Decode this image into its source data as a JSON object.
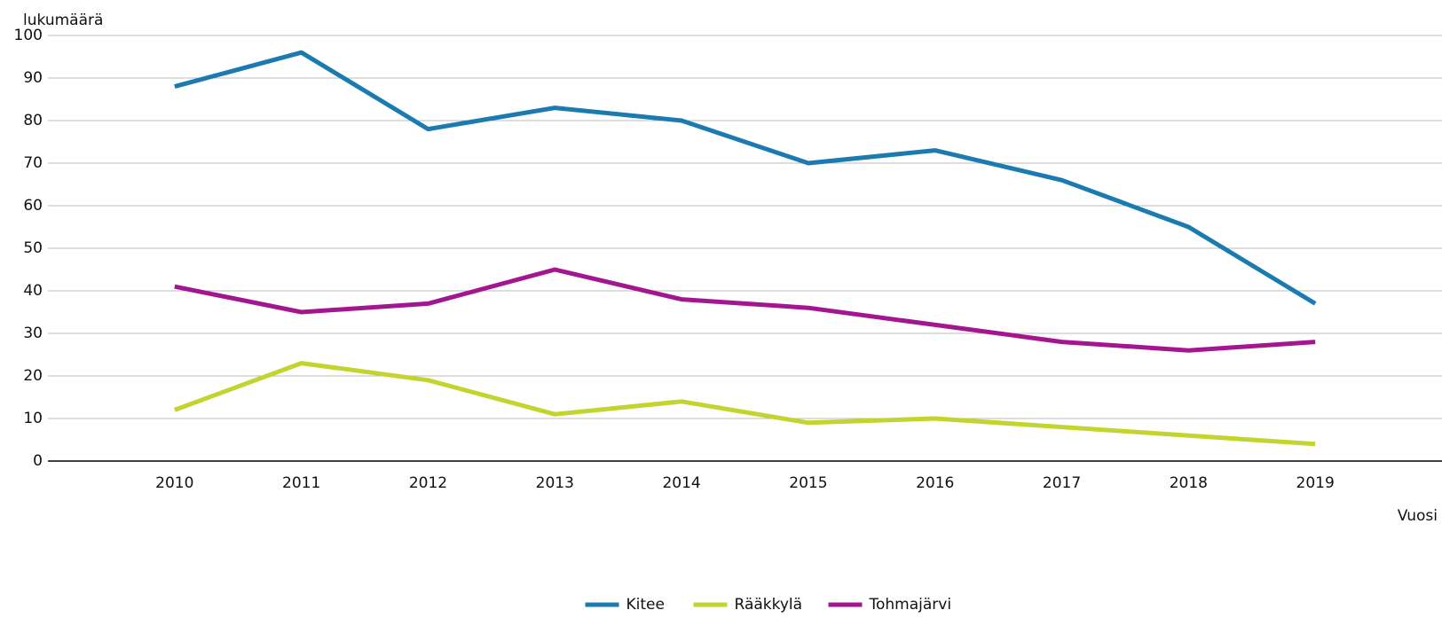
{
  "chart_data": {
    "type": "line",
    "y_label": "lukumäärä",
    "x_label": "Vuosi",
    "categories": [
      "2010",
      "2011",
      "2012",
      "2013",
      "2014",
      "2015",
      "2016",
      "2017",
      "2018",
      "2019"
    ],
    "series": [
      {
        "name": "Kitee",
        "color": "#1b7bb0",
        "values": [
          88,
          96,
          78,
          83,
          80,
          70,
          73,
          66,
          55,
          37
        ]
      },
      {
        "name": "Rääkkylä",
        "color": "#c2d52e",
        "values": [
          12,
          23,
          19,
          11,
          14,
          9,
          10,
          8,
          6,
          4
        ]
      },
      {
        "name": "Tohmajärvi",
        "color": "#a4168f",
        "values": [
          41,
          35,
          37,
          45,
          38,
          36,
          32,
          28,
          26,
          28
        ]
      }
    ],
    "ylim": [
      0,
      100
    ],
    "yticks": [
      0,
      10,
      20,
      30,
      40,
      50,
      60,
      70,
      80,
      90,
      100
    ],
    "grid": true,
    "legend": "bottom"
  }
}
